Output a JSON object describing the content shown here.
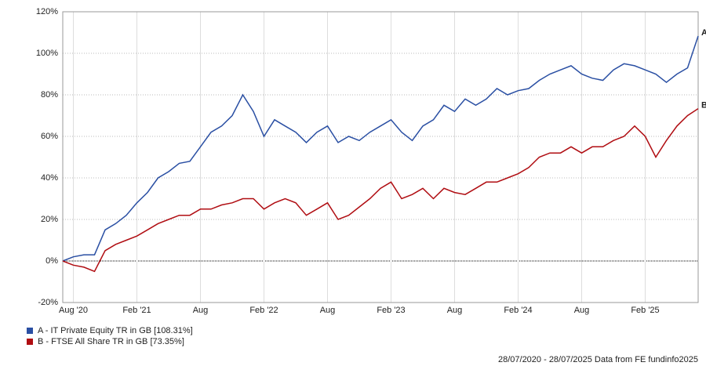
{
  "chart_data": {
    "type": "line",
    "x": [
      "2020-07",
      "2020-08",
      "2020-09",
      "2020-10",
      "2020-11",
      "2020-12",
      "2021-01",
      "2021-02",
      "2021-03",
      "2021-04",
      "2021-05",
      "2021-06",
      "2021-07",
      "2021-08",
      "2021-09",
      "2021-10",
      "2021-11",
      "2021-12",
      "2022-01",
      "2022-02",
      "2022-03",
      "2022-04",
      "2022-05",
      "2022-06",
      "2022-07",
      "2022-08",
      "2022-09",
      "2022-10",
      "2022-11",
      "2022-12",
      "2023-01",
      "2023-02",
      "2023-03",
      "2023-04",
      "2023-05",
      "2023-06",
      "2023-07",
      "2023-08",
      "2023-09",
      "2023-10",
      "2023-11",
      "2023-12",
      "2024-01",
      "2024-02",
      "2024-03",
      "2024-04",
      "2024-05",
      "2024-06",
      "2024-07",
      "2024-08",
      "2024-09",
      "2024-10",
      "2024-11",
      "2024-12",
      "2025-01",
      "2025-02",
      "2025-03",
      "2025-04",
      "2025-05",
      "2025-06",
      "2025-07"
    ],
    "series": [
      {
        "name": "A - IT Private Equity TR in GB [108.31%]",
        "end_label": "A",
        "color": "#2a4fa3",
        "values": [
          0,
          2,
          3,
          3,
          15,
          18,
          22,
          28,
          33,
          40,
          43,
          47,
          48,
          55,
          62,
          65,
          70,
          80,
          72,
          60,
          68,
          65,
          62,
          57,
          62,
          65,
          57,
          60,
          58,
          62,
          65,
          68,
          62,
          58,
          65,
          68,
          75,
          72,
          78,
          75,
          78,
          83,
          80,
          82,
          83,
          87,
          90,
          92,
          94,
          90,
          88,
          87,
          92,
          95,
          94,
          92,
          90,
          86,
          90,
          93,
          108.31
        ]
      },
      {
        "name": "B - FTSE All Share TR in GB [73.35%]",
        "end_label": "B",
        "color": "#b00d12",
        "values": [
          0,
          -2,
          -3,
          -5,
          5,
          8,
          10,
          12,
          15,
          18,
          20,
          22,
          22,
          25,
          25,
          27,
          28,
          30,
          30,
          25,
          28,
          30,
          28,
          22,
          25,
          28,
          20,
          22,
          26,
          30,
          35,
          38,
          30,
          32,
          35,
          30,
          35,
          33,
          32,
          35,
          38,
          38,
          40,
          42,
          45,
          50,
          52,
          52,
          55,
          52,
          55,
          55,
          58,
          60,
          65,
          60,
          50,
          58,
          65,
          70,
          73.35
        ]
      }
    ],
    "xlim": [
      "2020-07",
      "2025-07"
    ],
    "xticks": [
      {
        "value": "2020-08",
        "label": "Aug '20"
      },
      {
        "value": "2021-02",
        "label": "Feb '21"
      },
      {
        "value": "2021-08",
        "label": "Aug"
      },
      {
        "value": "2022-02",
        "label": "Feb '22"
      },
      {
        "value": "2022-08",
        "label": "Aug"
      },
      {
        "value": "2023-02",
        "label": "Feb '23"
      },
      {
        "value": "2023-08",
        "label": "Aug"
      },
      {
        "value": "2024-02",
        "label": "Feb '24"
      },
      {
        "value": "2024-08",
        "label": "Aug"
      },
      {
        "value": "2025-02",
        "label": "Feb '25"
      }
    ],
    "ylim": [
      -20,
      120
    ],
    "yticks": [
      {
        "value": -20,
        "label": "-20%"
      },
      {
        "value": 0,
        "label": "0%"
      },
      {
        "value": 20,
        "label": "20%"
      },
      {
        "value": 40,
        "label": "40%"
      },
      {
        "value": 60,
        "label": "60%"
      },
      {
        "value": 80,
        "label": "80%"
      },
      {
        "value": 100,
        "label": "100%"
      },
      {
        "value": 120,
        "label": "120%"
      }
    ],
    "grid": true,
    "footer": "28/07/2020 - 28/07/2025 Data from FE fundinfo2025"
  }
}
